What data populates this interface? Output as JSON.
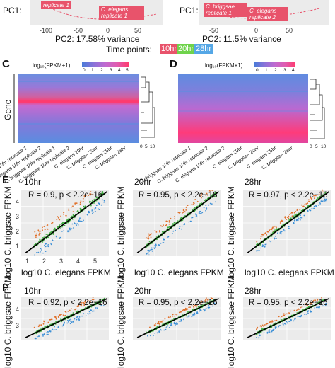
{
  "pca_top": {
    "pc1_label": "PC1:",
    "left": {
      "xlabel": "PC2: 17.58% variance",
      "ticks": [
        "-100",
        "-50",
        "0",
        "50"
      ],
      "labels": [
        "replicate 1",
        "C. elegans replicate 1"
      ]
    },
    "right": {
      "xlabel": "PC2: 11.5% variance",
      "ticks": [
        "-50",
        "0",
        "50"
      ],
      "labels": [
        "C. briggsae replicate 1",
        "C. elegans replicate 2"
      ]
    }
  },
  "time_points": {
    "label": "Time points:",
    "items": [
      {
        "text": "10hr",
        "color": "#e8536b"
      },
      {
        "text": "20hr",
        "color": "#6fd34b"
      },
      {
        "text": "28hr",
        "color": "#55a7e6"
      }
    ]
  },
  "heatmap_c": {
    "letter": "C",
    "legend_title": "log₁₀(FPKM+1)",
    "legend_ticks": [
      "0",
      "1",
      "2",
      "3",
      "4",
      "5"
    ],
    "row_label": "Gene",
    "dendro_ticks": [
      "0",
      "5",
      "10"
    ],
    "columns": [
      "C. elegans 10hr replicate 1",
      "C. elegans 10hr replicate 2",
      "C. briggsae 10hr replicate 1",
      "C. briggsae 10hr replicate 2",
      "C. elegans 20hr",
      "C. briggsae 20hr",
      "C. elegans 28hr",
      "C. briggsae 28hr"
    ]
  },
  "heatmap_d": {
    "letter": "D",
    "legend_title": "log₁₀(FPKM+1)",
    "legend_ticks": [
      "0",
      "1",
      "2",
      "3",
      "4"
    ],
    "dendro_ticks": [
      "0",
      "5",
      "10"
    ],
    "columns": [
      "C. briggsae 10hr replicate 1",
      "C. briggsae 10hr replicate 2",
      "C. elegans 10hr replicate 2",
      "C. elegans 20hr",
      "C. briggsae 20hr",
      "C. elegans 28hr",
      "C. briggsae 28hr"
    ]
  },
  "panel_e": {
    "letter": "E",
    "ylabel": "log10 C. briggsae FPKM",
    "xlabel": "log10 C. elegans FPKM",
    "xticks": [
      "1",
      "2",
      "3",
      "4",
      "5"
    ],
    "yticks": [
      "1",
      "2",
      "3",
      "4"
    ],
    "plots": [
      {
        "time": "10hr",
        "stat": "R = 0.9,  p < 2.2e−16"
      },
      {
        "time": "20hr",
        "stat": "R = 0.95,  p < 2.2e−16"
      },
      {
        "time": "28hr",
        "stat": "R = 0.97,  p < 2.2e−16"
      }
    ]
  },
  "panel_f": {
    "letter": "F",
    "ylabel": "log10 C. briggsae FPKM",
    "yticks": [
      "3",
      "4"
    ],
    "plots": [
      {
        "time": "10hr",
        "stat": "R = 0.92,  p < 2.2e−16"
      },
      {
        "time": "20hr",
        "stat": "R = 0.95,  p < 2.2e−16"
      },
      {
        "time": "28hr",
        "stat": "R = 0.95,  p < 2.2e−16"
      }
    ]
  },
  "colors": {
    "heat_low": "#4a90e2",
    "heat_mid": "#c06ad0",
    "heat_high": "#ff3b6e",
    "scatter_green": "#3fae3f",
    "scatter_orange": "#e0702a",
    "scatter_blue": "#3b8fd6"
  }
}
